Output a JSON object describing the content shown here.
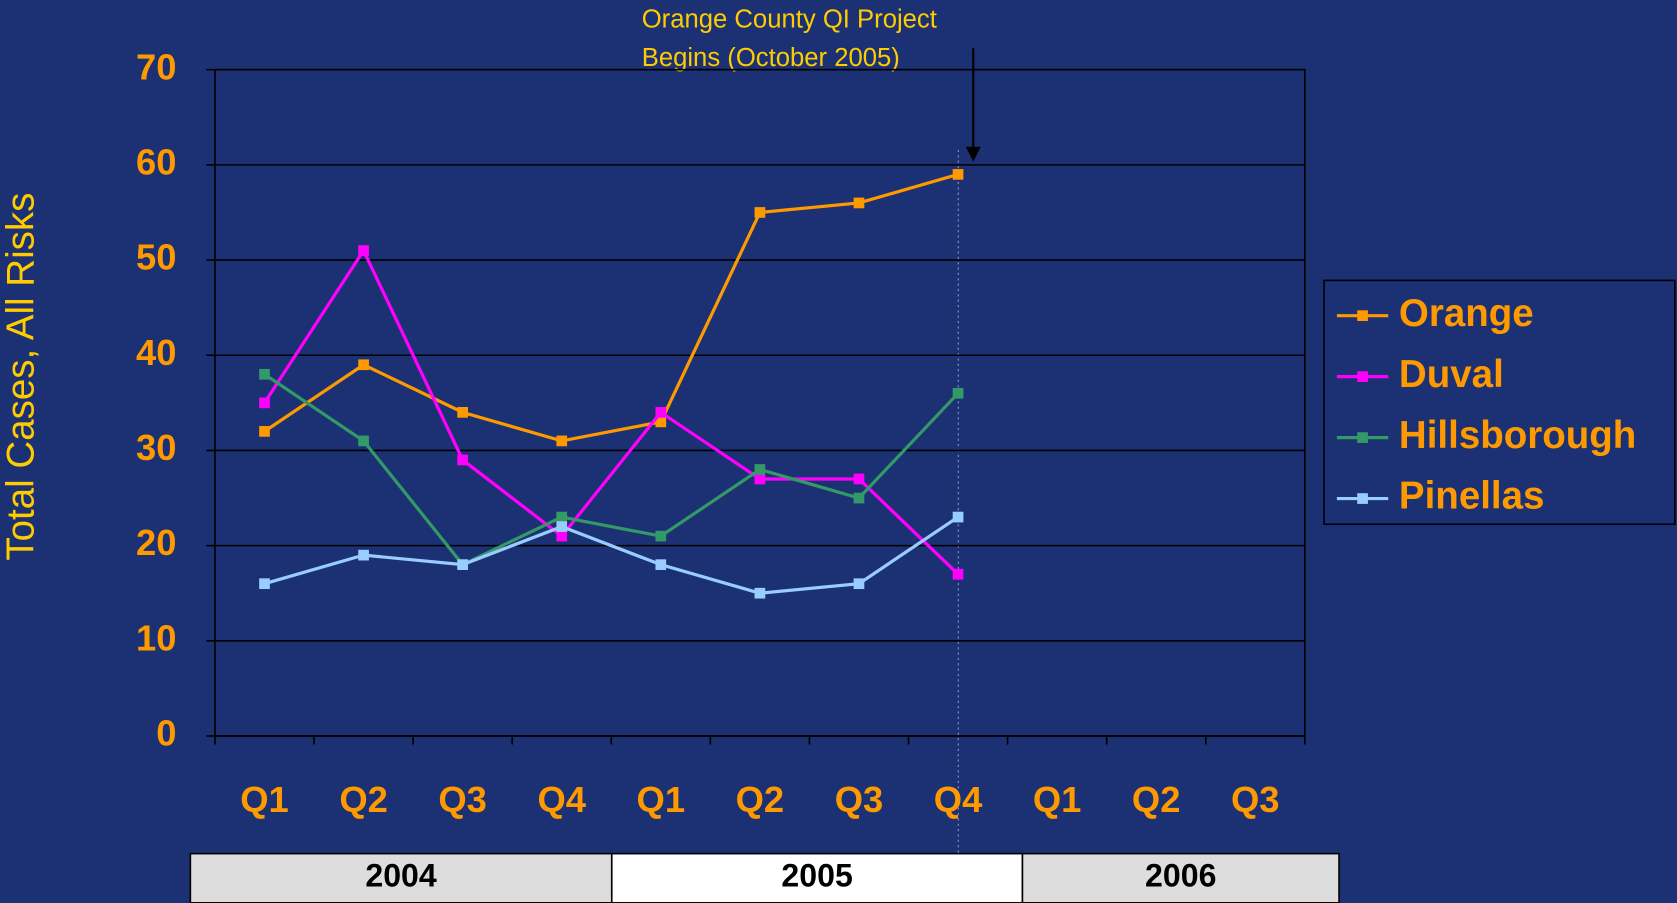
{
  "chart_data": {
    "type": "line",
    "annotation": [
      "Orange County QI Project",
      "Begins (October 2005)"
    ],
    "y_label": "Total Cases, All Risks",
    "categories": [
      "Q1",
      "Q2",
      "Q3",
      "Q4",
      "Q1",
      "Q2",
      "Q3",
      "Q4",
      "Q1",
      "Q2",
      "Q3"
    ],
    "groups": [
      "2004",
      "2005",
      "2006"
    ],
    "series": [
      {
        "name": "Orange",
        "color": "#ff9900",
        "values": [
          32,
          39,
          34,
          31,
          33,
          55,
          56,
          59,
          null,
          null,
          null
        ]
      },
      {
        "name": "Duval",
        "color": "#ff00ff",
        "values": [
          35,
          51,
          29,
          21,
          34,
          27,
          27,
          17,
          null,
          null,
          null
        ]
      },
      {
        "name": "Hillsborough",
        "color": "#339966",
        "values": [
          38,
          31,
          18,
          23,
          21,
          28,
          25,
          36,
          null,
          null,
          null
        ]
      },
      {
        "name": "Pinellas",
        "color": "#99ccff",
        "values": [
          16,
          19,
          18,
          22,
          18,
          15,
          16,
          23,
          null,
          null,
          null
        ]
      }
    ],
    "ylim": [
      0,
      70
    ],
    "yticks": [
      0,
      10,
      20,
      30,
      40,
      50,
      60,
      70
    ],
    "grid": true,
    "legend": "right"
  }
}
